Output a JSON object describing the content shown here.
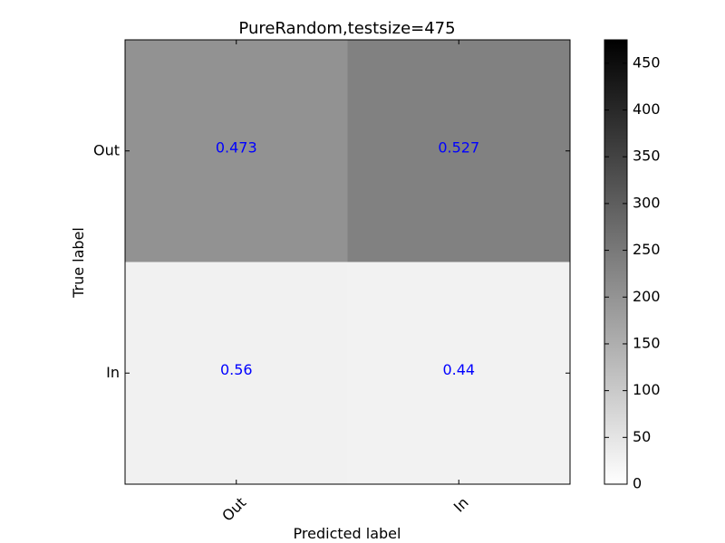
{
  "chart_data": {
    "type": "heatmap",
    "title": "PureRandom,testsize=475",
    "xlabel": "Predicted label",
    "ylabel": "True label",
    "x_categories": [
      "Out",
      "In"
    ],
    "y_categories": [
      "Out",
      "In"
    ],
    "cell_labels": [
      [
        "0.473",
        "0.527"
      ],
      [
        "0.56",
        "0.44"
      ]
    ],
    "cell_values": [
      [
        0.473,
        0.527
      ],
      [
        0.56,
        0.44
      ]
    ],
    "color_values": [
      [
        196,
        228
      ],
      [
        14,
        11
      ]
    ],
    "colorbar": {
      "ticks": [
        "0",
        "50",
        "100",
        "150",
        "200",
        "250",
        "300",
        "350",
        "400",
        "450"
      ],
      "range": [
        0,
        475
      ]
    },
    "annotation_color": "#0000ff",
    "colormap": "Greys"
  }
}
